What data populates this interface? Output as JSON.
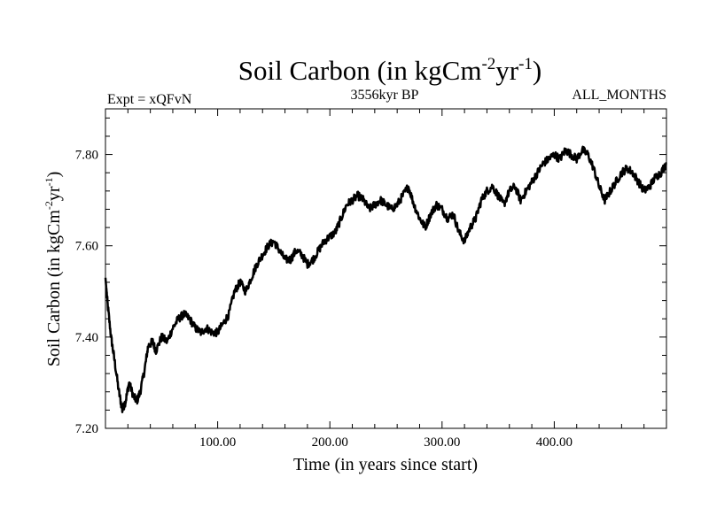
{
  "chart_data": {
    "type": "line",
    "title": {
      "base": "Soil Carbon (in kgCm",
      "sup1": "-2",
      "mid": "yr",
      "sup2": "-1",
      "end": ")"
    },
    "subtitle_left": "Expt = xQFvN",
    "subtitle_center": "3556kyr BP",
    "subtitle_right": "ALL_MONTHS",
    "xlabel": "Time (in years since start)",
    "ylabel": {
      "base": "Soil Carbon (in kgCm",
      "sup1": "-2",
      "mid": "yr",
      "sup2": "-1",
      "end": ")"
    },
    "xlim": [
      0,
      500
    ],
    "ylim": [
      7.2,
      7.9
    ],
    "x_ticks": [
      100,
      200,
      300,
      400
    ],
    "x_tick_labels": [
      "100.00",
      "200.00",
      "300.00",
      "400.00"
    ],
    "y_ticks": [
      7.2,
      7.4,
      7.6,
      7.8
    ],
    "y_tick_labels": [
      "7.20",
      "7.40",
      "7.60",
      "7.80"
    ],
    "grid": false,
    "series": [
      {
        "name": "Soil Carbon",
        "color": "#000000",
        "x": [
          0,
          2,
          5,
          8,
          12,
          15,
          18,
          21,
          25,
          28,
          31,
          35,
          38,
          42,
          45,
          50,
          55,
          60,
          65,
          70,
          75,
          80,
          85,
          90,
          95,
          100,
          105,
          110,
          115,
          120,
          125,
          130,
          135,
          140,
          145,
          150,
          155,
          160,
          165,
          170,
          175,
          180,
          185,
          190,
          195,
          200,
          205,
          210,
          215,
          220,
          225,
          230,
          235,
          240,
          245,
          250,
          255,
          260,
          265,
          270,
          275,
          280,
          285,
          290,
          295,
          300,
          305,
          310,
          315,
          320,
          325,
          330,
          335,
          340,
          345,
          350,
          355,
          360,
          365,
          370,
          375,
          380,
          385,
          390,
          395,
          400,
          405,
          410,
          415,
          420,
          425,
          430,
          435,
          440,
          445,
          450,
          455,
          460,
          465,
          470,
          475,
          480,
          485,
          490,
          495,
          500
        ],
        "values": [
          7.53,
          7.47,
          7.4,
          7.35,
          7.28,
          7.24,
          7.26,
          7.3,
          7.27,
          7.26,
          7.28,
          7.33,
          7.38,
          7.39,
          7.37,
          7.4,
          7.39,
          7.42,
          7.44,
          7.45,
          7.44,
          7.42,
          7.41,
          7.42,
          7.41,
          7.41,
          7.43,
          7.45,
          7.5,
          7.52,
          7.5,
          7.53,
          7.56,
          7.58,
          7.6,
          7.61,
          7.59,
          7.57,
          7.57,
          7.59,
          7.58,
          7.56,
          7.57,
          7.59,
          7.61,
          7.62,
          7.63,
          7.66,
          7.69,
          7.7,
          7.71,
          7.7,
          7.68,
          7.69,
          7.7,
          7.69,
          7.68,
          7.69,
          7.71,
          7.73,
          7.69,
          7.66,
          7.64,
          7.67,
          7.69,
          7.68,
          7.66,
          7.67,
          7.63,
          7.61,
          7.64,
          7.66,
          7.7,
          7.72,
          7.73,
          7.71,
          7.69,
          7.72,
          7.73,
          7.7,
          7.72,
          7.74,
          7.76,
          7.78,
          7.79,
          7.8,
          7.79,
          7.81,
          7.8,
          7.79,
          7.81,
          7.8,
          7.77,
          7.73,
          7.7,
          7.72,
          7.74,
          7.76,
          7.77,
          7.76,
          7.74,
          7.72,
          7.73,
          7.75,
          7.76,
          7.78
        ]
      }
    ]
  }
}
